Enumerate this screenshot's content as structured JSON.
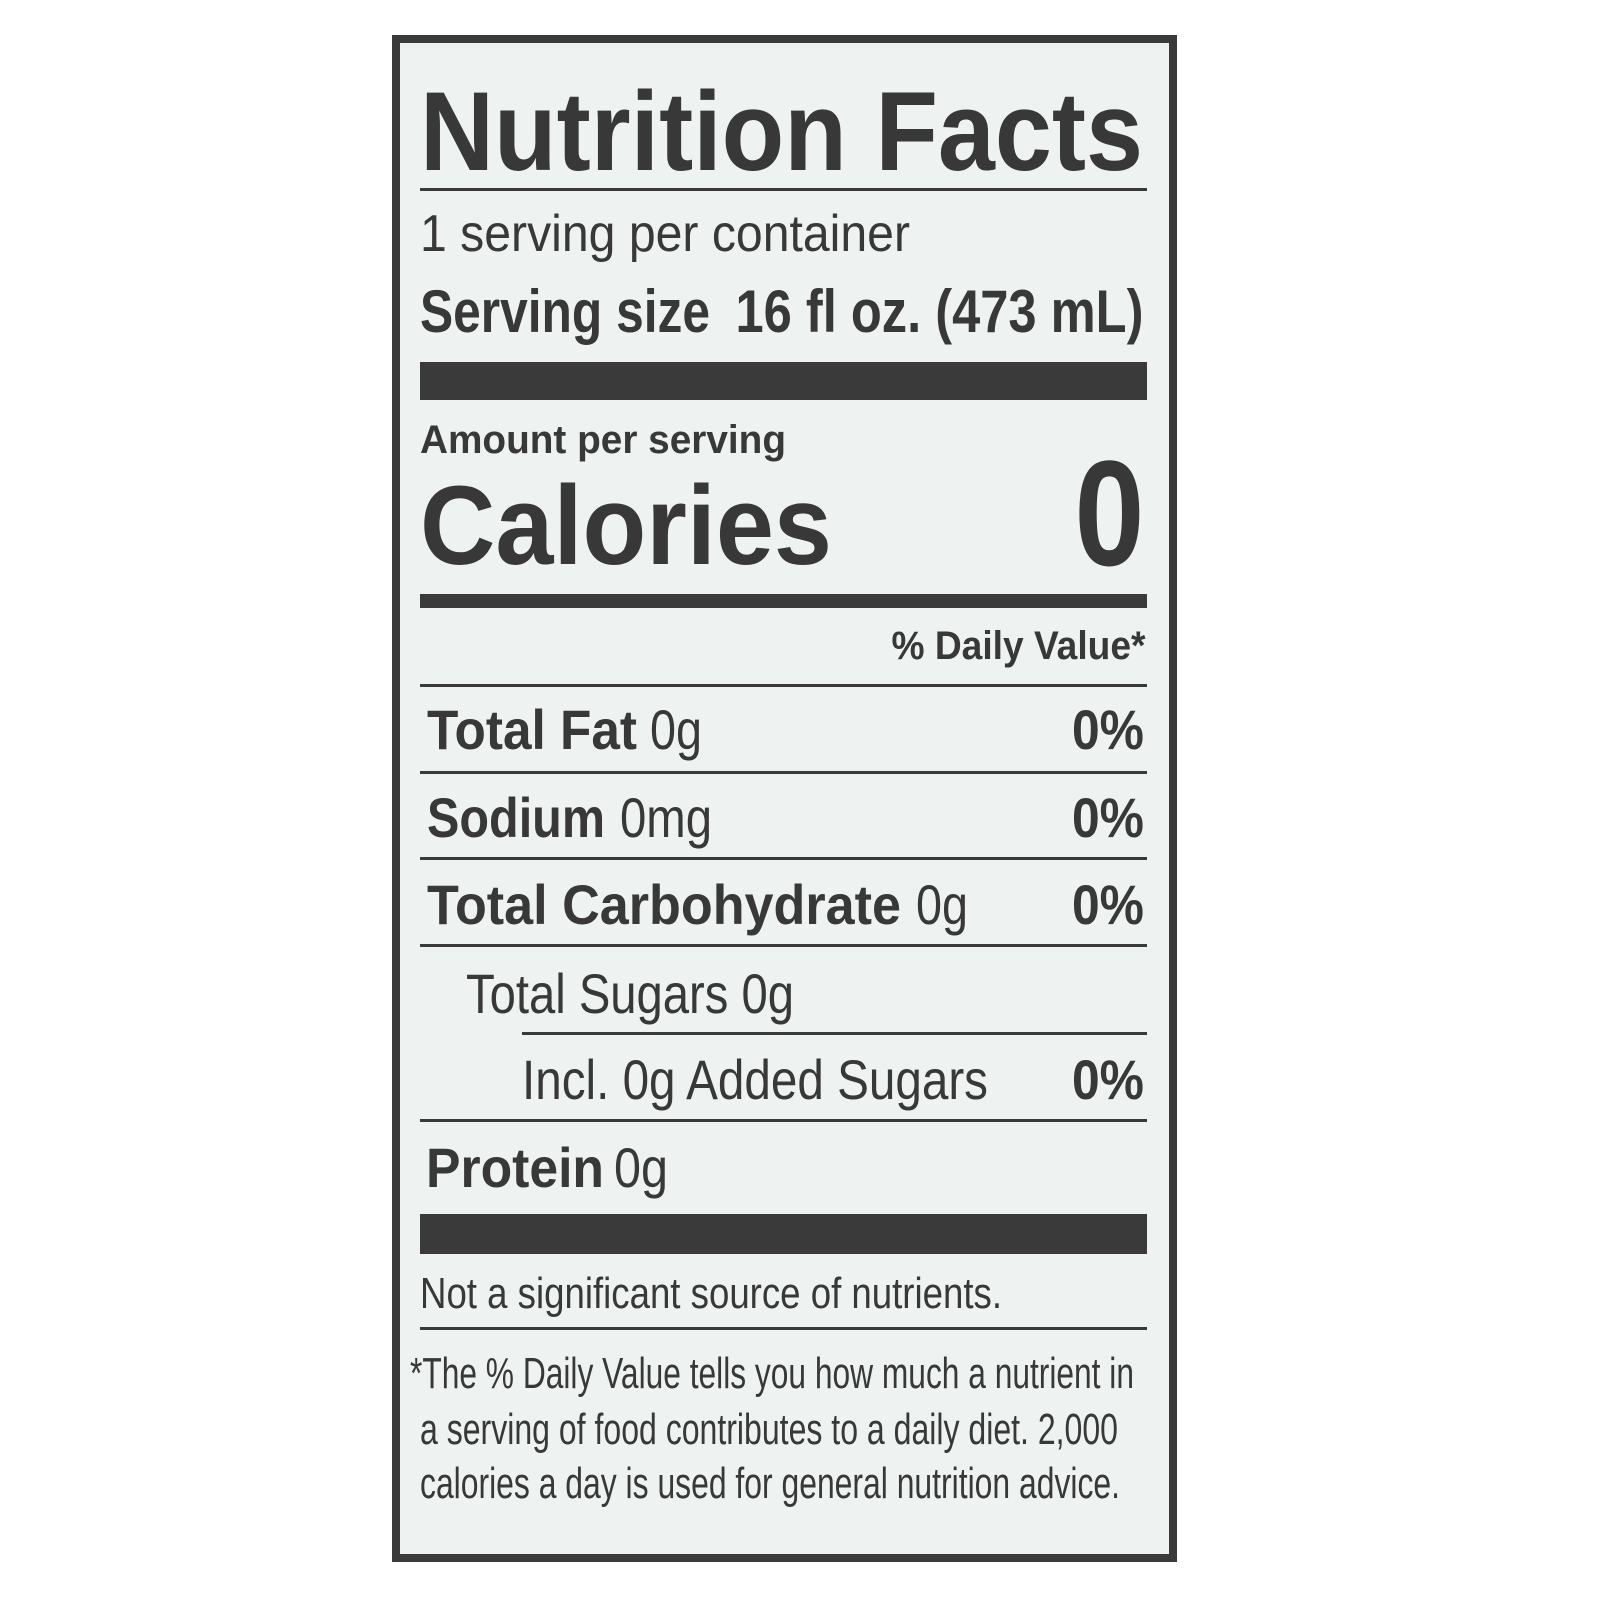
{
  "title": "Nutrition Facts",
  "servings_per_container": "1 serving per container",
  "serving_size": {
    "label": "Serving size",
    "value": "16 fl oz. (473 mL)"
  },
  "amount_per_serving": "Amount per serving",
  "calories": {
    "label": "Calories",
    "value": "0"
  },
  "daily_value_header": "% Daily Value*",
  "nutrients": [
    {
      "name": "Total Fat",
      "amount": "0g",
      "dv": "0%"
    },
    {
      "name": "Sodium",
      "amount": "0mg",
      "dv": "0%"
    },
    {
      "name": "Total Carbohydrate",
      "amount": "0g",
      "dv": "0%"
    },
    {
      "name": "Total Sugars 0g"
    },
    {
      "name": "Incl. 0g Added Sugars",
      "dv": "0%"
    },
    {
      "name": "Protein",
      "amount": "0g"
    }
  ],
  "note": "Not a significant source of nutrients.",
  "footnote": [
    "*The % Daily Value tells you how much a nutrient in",
    "a serving of food contributes to a daily diet. 2,000",
    "calories a day is used for general nutrition advice."
  ]
}
